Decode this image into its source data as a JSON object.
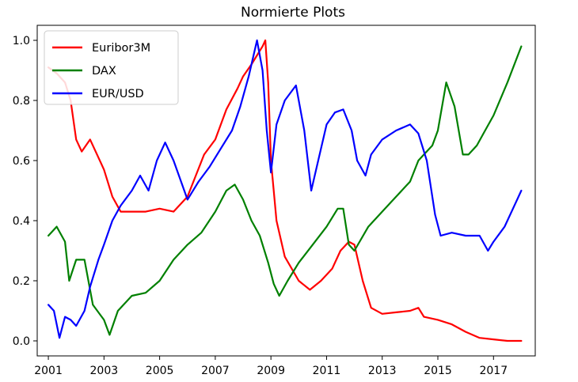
{
  "chart_data": {
    "type": "line",
    "title": "Normierte Plots",
    "xlabel": "",
    "ylabel": "",
    "xlim": [
      2000.6,
      2018.5
    ],
    "ylim": [
      -0.05,
      1.05
    ],
    "x_ticks": [
      2001,
      2003,
      2005,
      2007,
      2009,
      2011,
      2013,
      2015,
      2017
    ],
    "x_tick_labels": [
      "2001",
      "2003",
      "2005",
      "2007",
      "2009",
      "2011",
      "2013",
      "2015",
      "2017"
    ],
    "y_ticks": [
      0.0,
      0.2,
      0.4,
      0.6,
      0.8,
      1.0
    ],
    "y_tick_labels": [
      "0.0",
      "0.2",
      "0.4",
      "0.6",
      "0.8",
      "1.0"
    ],
    "grid": false,
    "legend": "top-left",
    "series": [
      {
        "name": "Euribor3M",
        "color": "#ff0000",
        "x": [
          2001.0,
          2001.3,
          2001.6,
          2001.8,
          2002.0,
          2002.2,
          2002.5,
          2002.8,
          2003.0,
          2003.3,
          2003.6,
          2004.0,
          2004.5,
          2005.0,
          2005.5,
          2006.0,
          2006.3,
          2006.6,
          2007.0,
          2007.4,
          2007.8,
          2008.0,
          2008.3,
          2008.5,
          2008.7,
          2008.8,
          2008.9,
          2009.0,
          2009.2,
          2009.5,
          2010.0,
          2010.4,
          2010.8,
          2011.2,
          2011.5,
          2011.8,
          2012.0,
          2012.3,
          2012.6,
          2013.0,
          2013.5,
          2014.0,
          2014.3,
          2014.5,
          2015.0,
          2015.5,
          2016.0,
          2016.5,
          2017.0,
          2017.5,
          2018.0
        ],
        "values": [
          0.91,
          0.89,
          0.86,
          0.8,
          0.67,
          0.63,
          0.67,
          0.61,
          0.57,
          0.48,
          0.43,
          0.43,
          0.43,
          0.44,
          0.43,
          0.48,
          0.55,
          0.62,
          0.67,
          0.77,
          0.84,
          0.88,
          0.92,
          0.95,
          0.98,
          1.0,
          0.86,
          0.6,
          0.4,
          0.28,
          0.2,
          0.17,
          0.2,
          0.24,
          0.3,
          0.33,
          0.32,
          0.2,
          0.11,
          0.09,
          0.095,
          0.1,
          0.11,
          0.08,
          0.07,
          0.055,
          0.03,
          0.01,
          0.005,
          0.0,
          0.0
        ]
      },
      {
        "name": "DAX",
        "color": "#008000",
        "x": [
          2001.0,
          2001.3,
          2001.6,
          2001.75,
          2002.0,
          2002.3,
          2002.6,
          2003.0,
          2003.2,
          2003.5,
          2004.0,
          2004.5,
          2005.0,
          2005.5,
          2006.0,
          2006.5,
          2007.0,
          2007.4,
          2007.7,
          2008.0,
          2008.3,
          2008.6,
          2008.9,
          2009.1,
          2009.3,
          2009.6,
          2010.0,
          2010.5,
          2011.0,
          2011.4,
          2011.6,
          2011.8,
          2012.0,
          2012.5,
          2013.0,
          2013.5,
          2014.0,
          2014.3,
          2014.5,
          2014.8,
          2015.0,
          2015.3,
          2015.6,
          2015.9,
          2016.1,
          2016.4,
          2016.7,
          2017.0,
          2017.5,
          2018.0
        ],
        "values": [
          0.35,
          0.38,
          0.33,
          0.2,
          0.27,
          0.27,
          0.12,
          0.07,
          0.02,
          0.1,
          0.15,
          0.16,
          0.2,
          0.27,
          0.32,
          0.36,
          0.43,
          0.5,
          0.52,
          0.47,
          0.4,
          0.35,
          0.26,
          0.19,
          0.15,
          0.2,
          0.26,
          0.32,
          0.38,
          0.44,
          0.44,
          0.32,
          0.3,
          0.38,
          0.43,
          0.48,
          0.53,
          0.6,
          0.62,
          0.65,
          0.7,
          0.86,
          0.78,
          0.62,
          0.62,
          0.65,
          0.7,
          0.75,
          0.86,
          0.98
        ]
      },
      {
        "name": "EUR/USD",
        "color": "#0000ff",
        "x": [
          2001.0,
          2001.2,
          2001.4,
          2001.6,
          2001.8,
          2002.0,
          2002.3,
          2002.5,
          2002.8,
          2003.0,
          2003.3,
          2003.6,
          2004.0,
          2004.3,
          2004.6,
          2004.9,
          2005.2,
          2005.5,
          2006.0,
          2006.4,
          2006.8,
          2007.2,
          2007.6,
          2007.9,
          2008.2,
          2008.5,
          2008.7,
          2008.85,
          2009.0,
          2009.2,
          2009.5,
          2009.9,
          2010.2,
          2010.45,
          2010.7,
          2011.0,
          2011.3,
          2011.6,
          2011.9,
          2012.1,
          2012.4,
          2012.6,
          2013.0,
          2013.5,
          2014.0,
          2014.3,
          2014.6,
          2014.9,
          2015.1,
          2015.5,
          2016.0,
          2016.5,
          2016.8,
          2017.0,
          2017.4,
          2017.8,
          2018.0
        ],
        "values": [
          0.12,
          0.1,
          0.01,
          0.08,
          0.07,
          0.05,
          0.1,
          0.18,
          0.27,
          0.32,
          0.4,
          0.45,
          0.5,
          0.55,
          0.5,
          0.6,
          0.66,
          0.6,
          0.47,
          0.53,
          0.58,
          0.64,
          0.7,
          0.78,
          0.88,
          1.0,
          0.9,
          0.7,
          0.56,
          0.72,
          0.8,
          0.85,
          0.7,
          0.5,
          0.6,
          0.72,
          0.76,
          0.77,
          0.7,
          0.6,
          0.55,
          0.62,
          0.67,
          0.7,
          0.72,
          0.69,
          0.6,
          0.42,
          0.35,
          0.36,
          0.35,
          0.35,
          0.3,
          0.33,
          0.38,
          0.46,
          0.5
        ]
      }
    ]
  }
}
